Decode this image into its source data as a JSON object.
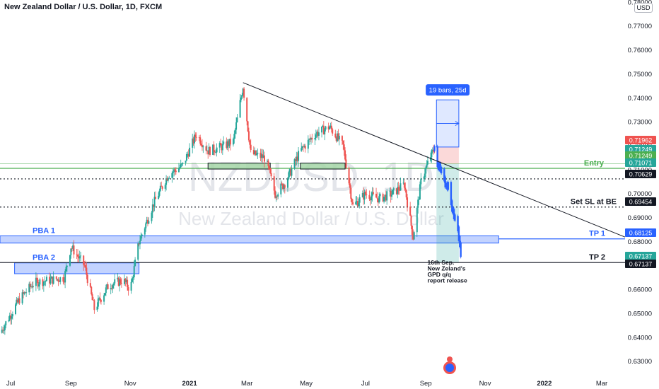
{
  "header": {
    "title": "New Zealand Dollar / U.S. Dollar, 1D, FXCM",
    "currency": "USD"
  },
  "watermark": {
    "symbol": "NZDUSD, 1D",
    "name": "New Zealand Dollar / U.S. Dollar"
  },
  "colors": {
    "up": "#26a69a",
    "down": "#ef5350",
    "blue_accent": "#2962ff",
    "green_zone": "#a5d6a7",
    "entry_green": "#4caf50"
  },
  "chart_data": {
    "type": "candlestick",
    "instrument": "NZDUSD",
    "timeframe": "1D",
    "xlim": [
      "2020-06-20",
      "2022-03-25"
    ],
    "ylim": [
      0.628,
      0.781
    ],
    "y_ticks": [
      "0.63000",
      "0.64000",
      "0.65000",
      "0.66000",
      "0.67000",
      "0.68000",
      "0.69000",
      "0.70000",
      "0.71000",
      "0.72000",
      "0.73000",
      "0.74000",
      "0.75000",
      "0.76000",
      "0.77000",
      "0.78000"
    ],
    "x_ticks": [
      {
        "label": "Jul",
        "date": "2020-07-01",
        "bold": false
      },
      {
        "label": "Sep",
        "date": "2020-09-01",
        "bold": false
      },
      {
        "label": "Nov",
        "date": "2020-11-01",
        "bold": false
      },
      {
        "label": "2021",
        "date": "2021-01-01",
        "bold": true
      },
      {
        "label": "Mar",
        "date": "2021-03-01",
        "bold": false
      },
      {
        "label": "May",
        "date": "2021-05-01",
        "bold": false
      },
      {
        "label": "Jul",
        "date": "2021-07-01",
        "bold": false
      },
      {
        "label": "Sep",
        "date": "2021-09-01",
        "bold": false
      },
      {
        "label": "Nov",
        "date": "2021-11-01",
        "bold": false
      },
      {
        "label": "2022",
        "date": "2022-01-01",
        "bold": true
      },
      {
        "label": "Mar",
        "date": "2022-03-01",
        "bold": false
      }
    ],
    "price_path": [
      [
        "2020-06-20",
        0.642
      ],
      [
        "2020-07-10",
        0.656
      ],
      [
        "2020-07-25",
        0.663
      ],
      [
        "2020-08-10",
        0.664
      ],
      [
        "2020-08-25",
        0.665
      ],
      [
        "2020-09-01",
        0.678
      ],
      [
        "2020-09-15",
        0.67
      ],
      [
        "2020-09-25",
        0.652
      ],
      [
        "2020-10-10",
        0.662
      ],
      [
        "2020-10-25",
        0.664
      ],
      [
        "2020-11-01",
        0.66
      ],
      [
        "2020-11-10",
        0.68
      ],
      [
        "2020-11-25",
        0.696
      ],
      [
        "2020-12-10",
        0.708
      ],
      [
        "2020-12-25",
        0.712
      ],
      [
        "2021-01-08",
        0.725
      ],
      [
        "2021-01-20",
        0.718
      ],
      [
        "2021-02-05",
        0.72
      ],
      [
        "2021-02-15",
        0.722
      ],
      [
        "2021-02-25",
        0.745
      ],
      [
        "2021-03-05",
        0.717
      ],
      [
        "2021-03-20",
        0.715
      ],
      [
        "2021-03-30",
        0.7
      ],
      [
        "2021-04-10",
        0.705
      ],
      [
        "2021-04-25",
        0.718
      ],
      [
        "2021-05-10",
        0.725
      ],
      [
        "2021-05-25",
        0.728
      ],
      [
        "2021-06-08",
        0.72
      ],
      [
        "2021-06-18",
        0.695
      ],
      [
        "2021-07-01",
        0.7
      ],
      [
        "2021-07-15",
        0.698
      ],
      [
        "2021-07-28",
        0.7
      ],
      [
        "2021-08-10",
        0.704
      ],
      [
        "2021-08-19",
        0.682
      ],
      [
        "2021-08-27",
        0.705
      ],
      [
        "2021-09-05",
        0.715
      ],
      [
        "2021-09-10",
        0.719
      ]
    ],
    "annotations": {
      "trendline": {
        "from": [
          "2021-02-25",
          0.7465
        ],
        "to": [
          "2022-03-25",
          0.682
        ]
      },
      "green_zone_1": {
        "from": "2021-01-20",
        "to": "2021-03-25",
        "y": [
          0.7104,
          0.7129
        ]
      },
      "green_zone_2": {
        "from": "2021-04-25",
        "to": "2021-06-10",
        "y": [
          0.7104,
          0.7129
        ]
      },
      "blue_zone_pba1": {
        "from": "2020-06-20",
        "to": "2021-11-15",
        "y": [
          0.6795,
          0.6825
        ]
      },
      "blue_zone_pba2": {
        "from": "2020-07-05",
        "to": "2020-11-10",
        "y": [
          0.6667,
          0.6712
        ]
      },
      "position": {
        "from": "2021-09-12",
        "to": "2021-10-05",
        "entry": 0.71249,
        "stop": 0.71962,
        "target": 0.67137
      },
      "projection": {
        "from": "2021-09-12",
        "to": "2021-10-05",
        "y": [
          0.7196,
          0.7393
        ]
      },
      "projection_label": "19 bars, 25d",
      "forecast_path": [
        [
          "2021-09-10",
          0.719
        ],
        [
          "2021-09-14",
          0.712
        ],
        [
          "2021-09-17",
          0.709
        ],
        [
          "2021-09-21",
          0.705
        ],
        [
          "2021-09-24",
          0.703
        ],
        [
          "2021-09-28",
          0.695
        ],
        [
          "2021-10-02",
          0.688
        ],
        [
          "2021-10-06",
          0.68
        ],
        [
          "2021-10-08",
          0.6714
        ]
      ]
    },
    "levels": [
      {
        "label": "Entry",
        "value": "0.71071",
        "style": "solid",
        "color": "#4caf50"
      },
      {
        "label": "",
        "value": "0.70629",
        "style": "dotted",
        "color": "#131722"
      },
      {
        "label": "Set SL at BE",
        "value": "0.69454",
        "style": "dotted",
        "color": "#131722"
      },
      {
        "label": "TP 1",
        "value": "0.68125",
        "style": "solid",
        "color": "#2962ff"
      },
      {
        "label": "TP 2",
        "value": "0.67137",
        "style": "solid",
        "color": "#131722"
      }
    ],
    "zone_labels": {
      "pba1": "PBA 1",
      "pba2": "PBA 2"
    },
    "price_badges": [
      {
        "value": "0.71962",
        "color": "#ef5350"
      },
      {
        "value": "0.71249",
        "color": "#26a69a"
      },
      {
        "value": "0.71249",
        "color": "#4caf50"
      },
      {
        "value": "0.71071",
        "color": "#26a69a"
      },
      {
        "value": "0.70629",
        "color": "#131722"
      },
      {
        "value": "0.69454",
        "color": "#131722"
      },
      {
        "value": "0.68125",
        "color": "#2962ff"
      },
      {
        "value": "0.67137",
        "color": "#26a69a"
      },
      {
        "value": "0.67137",
        "color": "#131722"
      }
    ],
    "event_note": [
      "16th Sep.",
      "New Zeland's",
      "GPD q/q",
      "report release"
    ]
  }
}
